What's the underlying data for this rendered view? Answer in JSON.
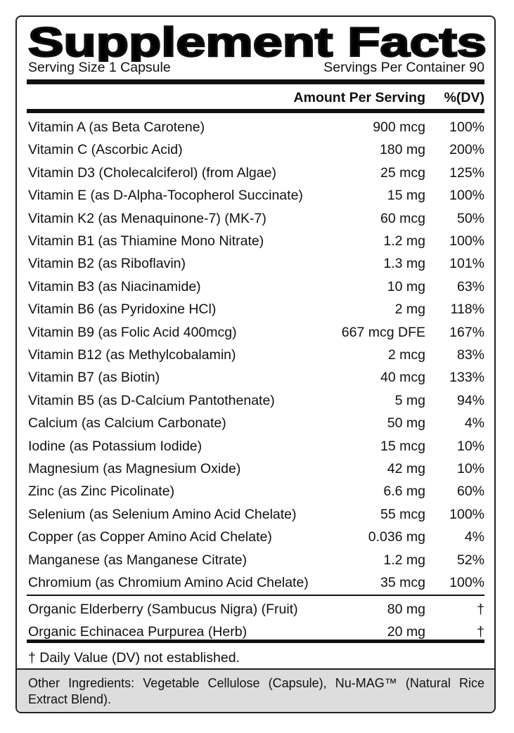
{
  "header": {
    "title": "Supplement Facts",
    "serving_size": "Serving Size 1 Capsule",
    "servings_per_container": "Servings Per Container 90"
  },
  "columns": {
    "amount": "Amount Per Serving",
    "dv": "%(DV)"
  },
  "table": {
    "rows": [
      [
        "Vitamin A (as Beta Carotene)",
        "900 mcg",
        "100%"
      ],
      [
        "Vitamin C (Ascorbic Acid)",
        "180 mg",
        "200%"
      ],
      [
        "Vitamin D3 (Cholecalciferol) (from Algae)",
        "25 mcg",
        "125%"
      ],
      [
        "Vitamin E (as D-Alpha-Tocopherol Succinate)",
        "15 mg",
        "100%"
      ],
      [
        "Vitamin K2 (as Menaquinone-7) (MK-7)",
        "60 mcg",
        "50%"
      ],
      [
        "Vitamin B1 (as Thiamine Mono Nitrate)",
        "1.2 mg",
        "100%"
      ],
      [
        "Vitamin B2 (as Riboflavin)",
        "1.3 mg",
        "101%"
      ],
      [
        "Vitamin B3 (as Niacinamide)",
        "10 mg",
        "63%"
      ],
      [
        "Vitamin B6 (as Pyridoxine HCl)",
        "2 mg",
        "118%"
      ],
      [
        "Vitamin B9 (as Folic Acid 400mcg)",
        "667 mcg DFE",
        "167%"
      ],
      [
        "Vitamin B12 (as Methylcobalamin)",
        "2 mcg",
        "83%"
      ],
      [
        "Vitamin B7 (as Biotin)",
        "40 mcg",
        "133%"
      ],
      [
        "Vitamin B5 (as D-Calcium Pantothenate)",
        "5 mg",
        "94%"
      ],
      [
        "Calcium (as Calcium Carbonate)",
        "50 mg",
        "4%"
      ],
      [
        "Iodine (as Potassium Iodide)",
        "15 mcg",
        "10%"
      ],
      [
        "Magnesium (as Magnesium Oxide)",
        "42 mg",
        "10%"
      ],
      [
        "Zinc (as Zinc Picolinate)",
        "6.6 mg",
        "60%"
      ],
      [
        "Selenium (as Selenium Amino Acid Chelate)",
        "55 mcg",
        "100%"
      ],
      [
        "Copper (as Copper Amino Acid Chelate)",
        "0.036 mg",
        "4%"
      ],
      [
        "Manganese (as Manganese Citrate)",
        "1.2 mg",
        "52%"
      ],
      [
        "Chromium (as Chromium Amino Acid Chelate)",
        "35 mcg",
        "100%"
      ]
    ],
    "botanicals": [
      [
        "Organic Elderberry (Sambucus Nigra) (Fruit)",
        "80 mg",
        "†"
      ],
      [
        "Organic Echinacea Purpurea (Herb)",
        "20 mg",
        "†"
      ]
    ]
  },
  "footnote": "† Daily Value (DV) not established.",
  "other_ingredients": "Other Ingredients: Vegetable Cellulose (Capsule), Nu-MAG™ (Natural Rice Extract Blend)."
}
